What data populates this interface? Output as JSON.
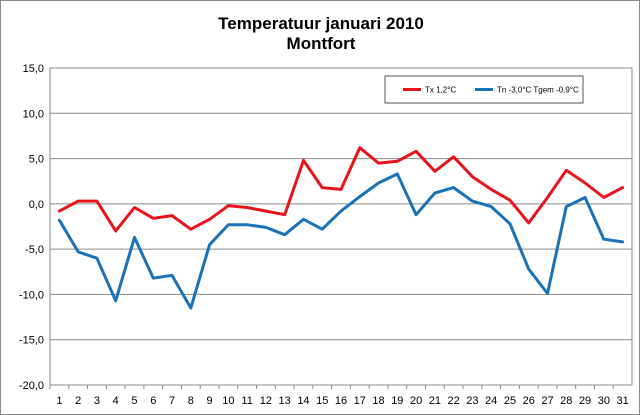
{
  "chart_data": {
    "type": "line",
    "title": "Temperatuur januari 2010",
    "subtitle": "Montfort",
    "xlabel": "",
    "ylabel": "",
    "categories": [
      "1",
      "2",
      "3",
      "4",
      "5",
      "6",
      "7",
      "8",
      "9",
      "10",
      "11",
      "12",
      "13",
      "14",
      "15",
      "16",
      "17",
      "18",
      "19",
      "20",
      "21",
      "22",
      "23",
      "24",
      "25",
      "26",
      "27",
      "28",
      "29",
      "30",
      "31"
    ],
    "ylim": [
      -20,
      15
    ],
    "yticks": [
      15,
      10,
      5,
      0,
      -5,
      -10,
      -15,
      -20
    ],
    "ytick_labels": [
      "15,0",
      "10,0",
      "5,0",
      "0,0",
      "-5,0",
      "-10,0",
      "-15,0",
      "-20,0"
    ],
    "grid": "horizontal",
    "legend_position": "top-right",
    "series": [
      {
        "name": "Tx 1,2°C",
        "color": "#e8141b",
        "values": [
          -0.8,
          0.3,
          0.3,
          -3.0,
          -0.4,
          -1.6,
          -1.3,
          -2.8,
          -1.7,
          -0.2,
          -0.4,
          -0.8,
          -1.2,
          4.8,
          1.8,
          1.6,
          6.2,
          4.5,
          4.7,
          5.8,
          3.6,
          5.2,
          3.0,
          1.6,
          0.4,
          -2.1,
          0.7,
          3.7,
          2.3,
          0.7,
          1.8
        ]
      },
      {
        "name": "Tn -3,0°C  Tgem -0,9°C",
        "color": "#1a73b8",
        "values": [
          -1.8,
          -5.3,
          -6.0,
          -10.7,
          -3.7,
          -8.2,
          -7.9,
          -11.5,
          -4.5,
          -2.3,
          -2.3,
          -2.6,
          -3.4,
          -1.7,
          -2.8,
          -0.8,
          0.8,
          2.3,
          3.3,
          -1.2,
          1.2,
          1.8,
          0.3,
          -0.3,
          -2.2,
          -7.2,
          -9.9,
          -0.3,
          0.7,
          -3.9,
          -4.2
        ]
      }
    ]
  }
}
